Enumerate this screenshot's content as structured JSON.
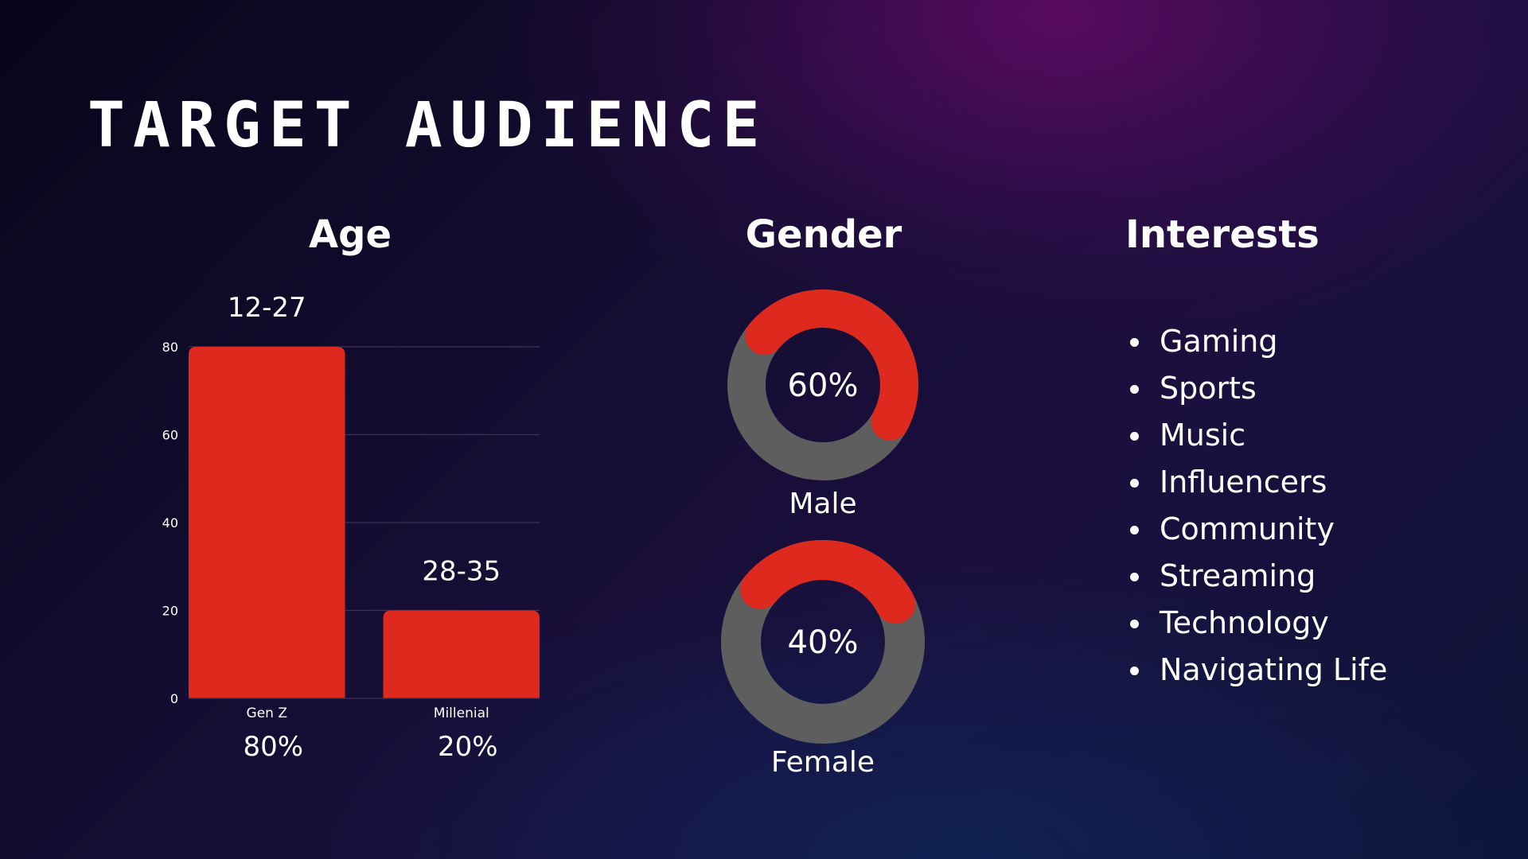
{
  "title": "TARGET AUDIENCE",
  "sections": {
    "age": {
      "heading": "Age"
    },
    "gender": {
      "heading": "Gender"
    },
    "interests": {
      "heading": "Interests",
      "items": [
        "Gaming",
        "Sports",
        "Music",
        "Influencers",
        "Community",
        "Streaming",
        "Technology",
        "Navigating Life"
      ]
    }
  },
  "colors": {
    "accent": "#de2a1e",
    "track": "#5e5e5e",
    "text": "#ffffff",
    "grid": "#3a3456"
  },
  "chart_data": [
    {
      "type": "bar",
      "title": "Age",
      "categories": [
        "Gen Z",
        "Millenial"
      ],
      "values": [
        80,
        20
      ],
      "top_labels": [
        "12-27",
        "28-35"
      ],
      "bottom_labels": [
        "80%",
        "20%"
      ],
      "yticks": [
        0,
        20,
        40,
        60,
        80
      ],
      "ylim": [
        0,
        80
      ],
      "grid": true
    },
    {
      "type": "pie",
      "title": "Gender",
      "donuts": [
        {
          "label": "Male",
          "value": 60,
          "display": "60%"
        },
        {
          "label": "Female",
          "value": 40,
          "display": "40%"
        }
      ]
    }
  ]
}
